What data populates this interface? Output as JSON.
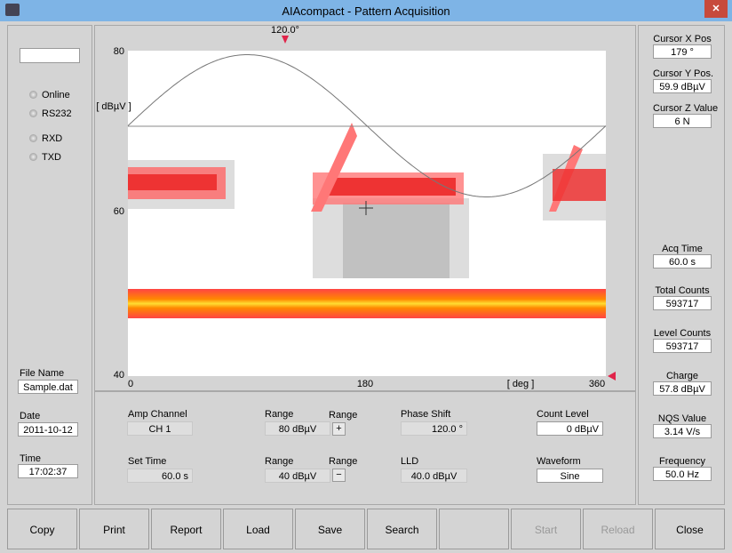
{
  "window": {
    "title": "AIAcompact - Pattern Acquisition"
  },
  "status": {
    "indicators": [
      "Online",
      "RS232",
      "RXD",
      "TXD"
    ],
    "file_name_label": "File Name",
    "file_name": "Sample.dat",
    "date_label": "Date",
    "date": "2011-10-12",
    "time_label": "Time",
    "time": "17:02:37"
  },
  "plot": {
    "marker": "120.0°",
    "y_unit": "[ dBµV ]",
    "y_labels": [
      "80",
      "60",
      "40"
    ],
    "x_unit": "[ deg ]",
    "x_labels": [
      "0",
      "180",
      "360"
    ]
  },
  "controls": {
    "amp_channel_label": "Amp Channel",
    "amp_channel": "CH 1",
    "range1_label": "Range",
    "range1": "80 dBµV",
    "range1_btn_label": "Range",
    "range1_btn": "+",
    "phase_shift_label": "Phase Shift",
    "phase_shift": "120.0  °",
    "count_level_label": "Count Level",
    "count_level": "0 dBµV",
    "set_time_label": "Set Time",
    "set_time": "60.0   s",
    "range2_label": "Range",
    "range2": "40 dBµV",
    "range2_btn_label": "Range",
    "range2_btn": "−",
    "lld_label": "LLD",
    "lld": "40.0 dBµV",
    "waveform_label": "Waveform",
    "waveform": "Sine"
  },
  "readouts": [
    {
      "label": "Cursor X Pos",
      "value": "179 °"
    },
    {
      "label": "Cursor Y Pos.",
      "value": "59.9 dBµV"
    },
    {
      "label": "Cursor Z Value",
      "value": "6 N"
    },
    {
      "label": "Acq Time",
      "value": "60.0 s"
    },
    {
      "label": "Total Counts",
      "value": "593717"
    },
    {
      "label": "Level Counts",
      "value": "593717"
    },
    {
      "label": "Charge",
      "value": "57.8 dBµV"
    },
    {
      "label": "NQS Value",
      "value": "3.14 V/s"
    },
    {
      "label": "Frequency",
      "value": "50.0 Hz"
    }
  ],
  "buttons": [
    "Copy",
    "Print",
    "Report",
    "Load",
    "Save",
    "Search",
    "Start",
    "Reload",
    "Close"
  ]
}
